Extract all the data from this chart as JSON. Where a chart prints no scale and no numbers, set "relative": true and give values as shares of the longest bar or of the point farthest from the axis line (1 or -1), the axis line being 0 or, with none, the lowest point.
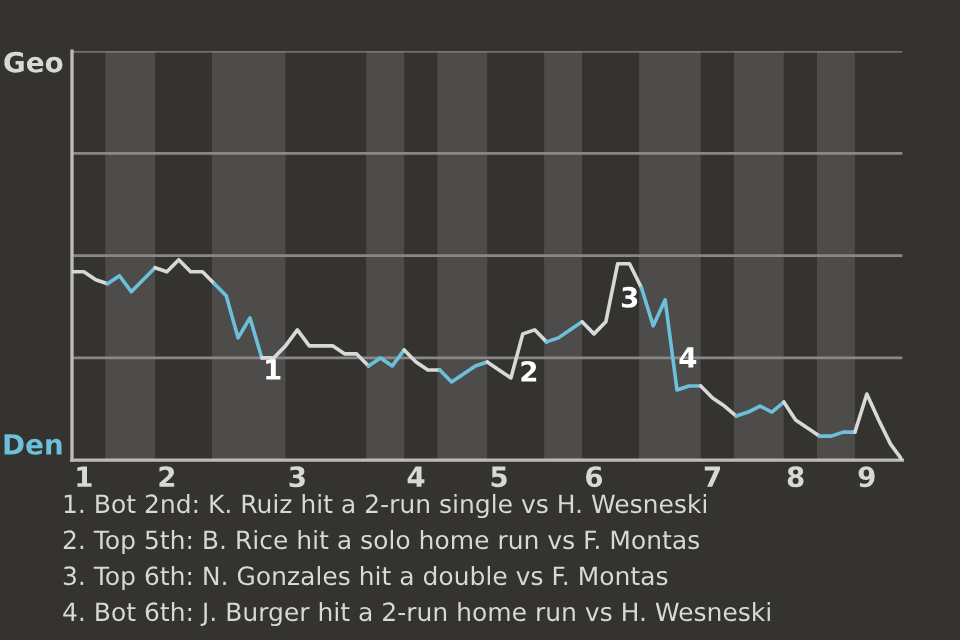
{
  "chart_data": {
    "type": "line",
    "relative": true,
    "categories": [
      null,
      "1",
      null,
      null,
      null,
      null,
      null,
      null,
      "2",
      null,
      null,
      null,
      null,
      null,
      null,
      null,
      null,
      null,
      null,
      "3",
      null,
      null,
      null,
      null,
      null,
      null,
      null,
      null,
      null,
      "4",
      null,
      null,
      null,
      null,
      null,
      null,
      "5",
      null,
      null,
      null,
      null,
      null,
      null,
      null,
      "6",
      null,
      null,
      null,
      null,
      null,
      null,
      null,
      null,
      null,
      "7",
      null,
      null,
      null,
      null,
      null,
      null,
      "8",
      null,
      null,
      null,
      null,
      null,
      "9",
      null,
      null,
      null
    ],
    "series": [
      {
        "color": "#d8d8d8",
        "values": [
          0.94,
          0.94,
          0.9,
          0.88,
          null,
          null,
          null,
          null,
          null,
          null,
          null,
          null,
          null,
          null,
          null,
          null,
          null,
          null,
          null,
          null,
          null,
          null,
          null,
          null,
          null,
          null,
          null,
          null,
          null,
          null,
          null,
          null,
          null,
          null,
          null,
          null,
          null,
          null,
          null,
          null,
          null,
          null,
          null,
          null,
          null,
          null,
          null,
          null,
          null,
          null,
          null,
          null,
          null,
          null,
          null,
          null,
          null,
          null,
          null,
          null,
          null,
          null,
          null,
          null,
          null,
          null,
          null,
          null,
          null,
          null,
          null
        ]
      },
      {
        "color": "#6cc0dc",
        "values": [
          null,
          null,
          null,
          0.88,
          0.92,
          0.84,
          0.9,
          0.96,
          null,
          null,
          null,
          null,
          null,
          null,
          null,
          null,
          null,
          null,
          null,
          null,
          null,
          null,
          null,
          null,
          null,
          null,
          null,
          null,
          null,
          null,
          null,
          null,
          null,
          null,
          null,
          null,
          null,
          null,
          null,
          null,
          null,
          null,
          null,
          null,
          null,
          null,
          null,
          null,
          null,
          null,
          null,
          null,
          null,
          null,
          null,
          null,
          null,
          null,
          null,
          null,
          null,
          null,
          null,
          null,
          null,
          null,
          null,
          null,
          null,
          null,
          null
        ]
      },
      {
        "color": "#d8d8d8",
        "values": [
          null,
          null,
          null,
          null,
          null,
          null,
          null,
          0.96,
          0.94,
          1,
          0.94,
          0.94,
          0.88,
          null,
          null,
          null,
          null,
          null,
          null,
          null,
          null,
          null,
          null,
          null,
          null,
          null,
          null,
          null,
          null,
          null,
          null,
          null,
          null,
          null,
          null,
          null,
          null,
          null,
          null,
          null,
          null,
          null,
          null,
          null,
          null,
          null,
          null,
          null,
          null,
          null,
          null,
          null,
          null,
          null,
          null,
          null,
          null,
          null,
          null,
          null,
          null,
          null,
          null,
          null,
          null,
          null,
          null,
          null,
          null,
          null,
          null
        ]
      },
      {
        "color": "#6cc0dc",
        "values": [
          null,
          null,
          null,
          null,
          null,
          null,
          null,
          null,
          null,
          null,
          null,
          null,
          0.88,
          0.82,
          0.61,
          0.71,
          0.51,
          null,
          null,
          null,
          null,
          null,
          null,
          null,
          null,
          null,
          null,
          null,
          null,
          null,
          null,
          null,
          null,
          null,
          null,
          null,
          null,
          null,
          null,
          null,
          null,
          null,
          null,
          null,
          null,
          null,
          null,
          null,
          null,
          null,
          null,
          null,
          null,
          null,
          null,
          null,
          null,
          null,
          null,
          null,
          null,
          null,
          null,
          null,
          null,
          null,
          null,
          null,
          null,
          null,
          null
        ]
      },
      {
        "color": "#d8d8d8",
        "values": [
          null,
          null,
          null,
          null,
          null,
          null,
          null,
          null,
          null,
          null,
          null,
          null,
          null,
          null,
          null,
          null,
          0.51,
          0.51,
          0.57,
          0.65,
          0.57,
          0.57,
          0.57,
          0.53,
          0.53,
          0.47,
          null,
          null,
          null,
          null,
          null,
          null,
          null,
          null,
          null,
          null,
          null,
          null,
          null,
          null,
          null,
          null,
          null,
          null,
          null,
          null,
          null,
          null,
          null,
          null,
          null,
          null,
          null,
          null,
          null,
          null,
          null,
          null,
          null,
          null,
          null,
          null,
          null,
          null,
          null,
          null,
          null,
          null,
          null,
          null,
          null
        ]
      },
      {
        "color": "#6cc0dc",
        "values": [
          null,
          null,
          null,
          null,
          null,
          null,
          null,
          null,
          null,
          null,
          null,
          null,
          null,
          null,
          null,
          null,
          null,
          null,
          null,
          null,
          null,
          null,
          null,
          null,
          null,
          0.47,
          0.51,
          0.47,
          0.55,
          null,
          null,
          null,
          null,
          null,
          null,
          null,
          null,
          null,
          null,
          null,
          null,
          null,
          null,
          null,
          null,
          null,
          null,
          null,
          null,
          null,
          null,
          null,
          null,
          null,
          null,
          null,
          null,
          null,
          null,
          null,
          null,
          null,
          null,
          null,
          null,
          null,
          null,
          null,
          null,
          null,
          null
        ]
      },
      {
        "color": "#d8d8d8",
        "values": [
          null,
          null,
          null,
          null,
          null,
          null,
          null,
          null,
          null,
          null,
          null,
          null,
          null,
          null,
          null,
          null,
          null,
          null,
          null,
          null,
          null,
          null,
          null,
          null,
          null,
          null,
          null,
          null,
          0.55,
          0.49,
          0.45,
          0.45,
          null,
          null,
          null,
          null,
          null,
          null,
          null,
          null,
          null,
          null,
          null,
          null,
          null,
          null,
          null,
          null,
          null,
          null,
          null,
          null,
          null,
          null,
          null,
          null,
          null,
          null,
          null,
          null,
          null,
          null,
          null,
          null,
          null,
          null,
          null,
          null,
          null,
          null,
          null
        ]
      },
      {
        "color": "#6cc0dc",
        "values": [
          null,
          null,
          null,
          null,
          null,
          null,
          null,
          null,
          null,
          null,
          null,
          null,
          null,
          null,
          null,
          null,
          null,
          null,
          null,
          null,
          null,
          null,
          null,
          null,
          null,
          null,
          null,
          null,
          null,
          null,
          null,
          0.45,
          0.39,
          0.43,
          0.47,
          0.49,
          null,
          null,
          null,
          null,
          null,
          null,
          null,
          null,
          null,
          null,
          null,
          null,
          null,
          null,
          null,
          null,
          null,
          null,
          null,
          null,
          null,
          null,
          null,
          null,
          null,
          null,
          null,
          null,
          null,
          null,
          null,
          null,
          null,
          null,
          null
        ]
      },
      {
        "color": "#d8d8d8",
        "values": [
          null,
          null,
          null,
          null,
          null,
          null,
          null,
          null,
          null,
          null,
          null,
          null,
          null,
          null,
          null,
          null,
          null,
          null,
          null,
          null,
          null,
          null,
          null,
          null,
          null,
          null,
          null,
          null,
          null,
          null,
          null,
          null,
          null,
          null,
          null,
          0.49,
          0.45,
          0.41,
          0.63,
          0.65,
          0.59,
          null,
          null,
          null,
          null,
          null,
          null,
          null,
          null,
          null,
          null,
          null,
          null,
          null,
          null,
          null,
          null,
          null,
          null,
          null,
          null,
          null,
          null,
          null,
          null,
          null,
          null,
          null,
          null,
          null,
          null
        ]
      },
      {
        "color": "#6cc0dc",
        "values": [
          null,
          null,
          null,
          null,
          null,
          null,
          null,
          null,
          null,
          null,
          null,
          null,
          null,
          null,
          null,
          null,
          null,
          null,
          null,
          null,
          null,
          null,
          null,
          null,
          null,
          null,
          null,
          null,
          null,
          null,
          null,
          null,
          null,
          null,
          null,
          null,
          null,
          null,
          null,
          null,
          0.59,
          0.61,
          0.65,
          0.69,
          null,
          null,
          null,
          null,
          null,
          null,
          null,
          null,
          null,
          null,
          null,
          null,
          null,
          null,
          null,
          null,
          null,
          null,
          null,
          null,
          null,
          null,
          null,
          null,
          null,
          null,
          null
        ]
      },
      {
        "color": "#d8d8d8",
        "values": [
          null,
          null,
          null,
          null,
          null,
          null,
          null,
          null,
          null,
          null,
          null,
          null,
          null,
          null,
          null,
          null,
          null,
          null,
          null,
          null,
          null,
          null,
          null,
          null,
          null,
          null,
          null,
          null,
          null,
          null,
          null,
          null,
          null,
          null,
          null,
          null,
          null,
          null,
          null,
          null,
          null,
          null,
          null,
          0.69,
          0.63,
          0.69,
          0.98,
          0.98,
          0.86,
          null,
          null,
          null,
          null,
          null,
          null,
          null,
          null,
          null,
          null,
          null,
          null,
          null,
          null,
          null,
          null,
          null,
          null,
          null,
          null,
          null,
          null
        ]
      },
      {
        "color": "#6cc0dc",
        "values": [
          null,
          null,
          null,
          null,
          null,
          null,
          null,
          null,
          null,
          null,
          null,
          null,
          null,
          null,
          null,
          null,
          null,
          null,
          null,
          null,
          null,
          null,
          null,
          null,
          null,
          null,
          null,
          null,
          null,
          null,
          null,
          null,
          null,
          null,
          null,
          null,
          null,
          null,
          null,
          null,
          null,
          null,
          null,
          null,
          null,
          null,
          null,
          null,
          0.86,
          0.67,
          0.8,
          0.35,
          0.37,
          0.37,
          null,
          null,
          null,
          null,
          null,
          null,
          null,
          null,
          null,
          null,
          null,
          null,
          null,
          null,
          null,
          null,
          null
        ]
      },
      {
        "color": "#d8d8d8",
        "values": [
          null,
          null,
          null,
          null,
          null,
          null,
          null,
          null,
          null,
          null,
          null,
          null,
          null,
          null,
          null,
          null,
          null,
          null,
          null,
          null,
          null,
          null,
          null,
          null,
          null,
          null,
          null,
          null,
          null,
          null,
          null,
          null,
          null,
          null,
          null,
          null,
          null,
          null,
          null,
          null,
          null,
          null,
          null,
          null,
          null,
          null,
          null,
          null,
          null,
          null,
          null,
          null,
          null,
          0.37,
          0.31,
          0.27,
          0.22,
          null,
          null,
          null,
          null,
          null,
          null,
          null,
          null,
          null,
          null,
          null,
          null,
          null,
          null
        ]
      },
      {
        "color": "#6cc0dc",
        "values": [
          null,
          null,
          null,
          null,
          null,
          null,
          null,
          null,
          null,
          null,
          null,
          null,
          null,
          null,
          null,
          null,
          null,
          null,
          null,
          null,
          null,
          null,
          null,
          null,
          null,
          null,
          null,
          null,
          null,
          null,
          null,
          null,
          null,
          null,
          null,
          null,
          null,
          null,
          null,
          null,
          null,
          null,
          null,
          null,
          null,
          null,
          null,
          null,
          null,
          null,
          null,
          null,
          null,
          null,
          null,
          null,
          0.22,
          0.24,
          0.27,
          0.24,
          0.29,
          null,
          null,
          null,
          null,
          null,
          null,
          null,
          null,
          null,
          null
        ]
      },
      {
        "color": "#d8d8d8",
        "values": [
          null,
          null,
          null,
          null,
          null,
          null,
          null,
          null,
          null,
          null,
          null,
          null,
          null,
          null,
          null,
          null,
          null,
          null,
          null,
          null,
          null,
          null,
          null,
          null,
          null,
          null,
          null,
          null,
          null,
          null,
          null,
          null,
          null,
          null,
          null,
          null,
          null,
          null,
          null,
          null,
          null,
          null,
          null,
          null,
          null,
          null,
          null,
          null,
          null,
          null,
          null,
          null,
          null,
          null,
          null,
          null,
          null,
          null,
          null,
          null,
          0.29,
          0.2,
          0.16,
          0.12,
          null,
          null,
          null,
          null,
          null,
          null,
          null
        ]
      },
      {
        "color": "#6cc0dc",
        "values": [
          null,
          null,
          null,
          null,
          null,
          null,
          null,
          null,
          null,
          null,
          null,
          null,
          null,
          null,
          null,
          null,
          null,
          null,
          null,
          null,
          null,
          null,
          null,
          null,
          null,
          null,
          null,
          null,
          null,
          null,
          null,
          null,
          null,
          null,
          null,
          null,
          null,
          null,
          null,
          null,
          null,
          null,
          null,
          null,
          null,
          null,
          null,
          null,
          null,
          null,
          null,
          null,
          null,
          null,
          null,
          null,
          null,
          null,
          null,
          null,
          null,
          null,
          null,
          0.12,
          0.12,
          0.14,
          0.14,
          null,
          null,
          null,
          null
        ]
      },
      {
        "color": "#d8d8d8",
        "values": [
          null,
          null,
          null,
          null,
          null,
          null,
          null,
          null,
          null,
          null,
          null,
          null,
          null,
          null,
          null,
          null,
          null,
          null,
          null,
          null,
          null,
          null,
          null,
          null,
          null,
          null,
          null,
          null,
          null,
          null,
          null,
          null,
          null,
          null,
          null,
          null,
          null,
          null,
          null,
          null,
          null,
          null,
          null,
          null,
          null,
          null,
          null,
          null,
          null,
          null,
          null,
          null,
          null,
          null,
          null,
          null,
          null,
          null,
          null,
          null,
          null,
          null,
          null,
          null,
          null,
          null,
          0.14,
          0.33,
          0.2,
          0.08,
          0
        ]
      }
    ],
    "ref_lines": [
      {
        "axis": "y",
        "value": 0.51,
        "color": "#8a8886"
      },
      {
        "axis": "y",
        "value": 1.02,
        "color": "#8a8886"
      },
      {
        "axis": "y",
        "value": 1.53,
        "color": "#8a8886"
      },
      {
        "axis": "y",
        "value": 2.04,
        "color": "#8a8886"
      }
    ],
    "annotations": [
      "Geo",
      "Den",
      "1",
      "2",
      "3",
      "4",
      "1. Bot 2nd: K. Ruiz hit a 2-run single vs H. Wesneski",
      "2. Top 5th: B. Rice hit a solo home run vs F. Montas",
      "3. Top 6th: N. Gonzales hit a double vs F. Montas",
      "4. Bot 6th: J. Burger hit a 2-run home run vs H. Wesneski"
    ]
  }
}
